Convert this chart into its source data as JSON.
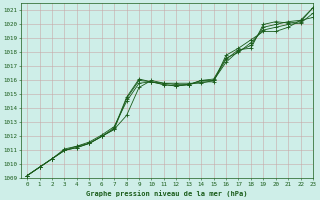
{
  "xlabel": "Graphe pression niveau de la mer (hPa)",
  "ylim": [
    1009,
    1021.5
  ],
  "xlim": [
    -0.5,
    23
  ],
  "yticks": [
    1009,
    1010,
    1011,
    1012,
    1013,
    1014,
    1015,
    1016,
    1017,
    1018,
    1019,
    1020,
    1021
  ],
  "xticks": [
    0,
    1,
    2,
    3,
    4,
    5,
    6,
    7,
    8,
    9,
    10,
    11,
    12,
    13,
    14,
    15,
    16,
    17,
    18,
    19,
    20,
    21,
    22,
    23
  ],
  "background_color": "#ceeee8",
  "grid_color": "#c8a8a8",
  "line_color": "#1a5c1a",
  "series": [
    [
      1009.2,
      1009.8,
      1010.4,
      1011.0,
      1011.2,
      1011.5,
      1012.0,
      1012.5,
      1013.5,
      1015.5,
      1016.0,
      1015.8,
      1015.8,
      1015.8,
      1015.8,
      1016.0,
      1017.3,
      1018.1,
      1018.5,
      1019.8,
      1020.0,
      1020.2,
      1020.3,
      1021.2
    ],
    [
      1009.2,
      1009.8,
      1010.4,
      1011.0,
      1011.2,
      1011.5,
      1012.0,
      1012.6,
      1014.8,
      1016.1,
      1015.9,
      1015.8,
      1015.7,
      1015.7,
      1016.0,
      1016.0,
      1017.5,
      1018.2,
      1018.3,
      1020.0,
      1020.2,
      1020.1,
      1020.2,
      1021.2
    ],
    [
      1009.2,
      1009.8,
      1010.4,
      1011.1,
      1011.3,
      1011.6,
      1012.1,
      1012.7,
      1014.5,
      1015.8,
      1015.9,
      1015.7,
      1015.6,
      1015.7,
      1015.9,
      1015.9,
      1017.8,
      1018.3,
      1018.9,
      1019.5,
      1019.5,
      1019.8,
      1020.3,
      1020.5
    ],
    [
      1009.2,
      1009.8,
      1010.4,
      1011.0,
      1011.3,
      1011.5,
      1012.0,
      1012.5,
      1014.7,
      1016.0,
      1015.9,
      1015.7,
      1015.6,
      1015.7,
      1016.0,
      1016.1,
      1017.6,
      1018.0,
      1018.7,
      1019.6,
      1019.8,
      1020.0,
      1020.1,
      1020.8
    ]
  ]
}
